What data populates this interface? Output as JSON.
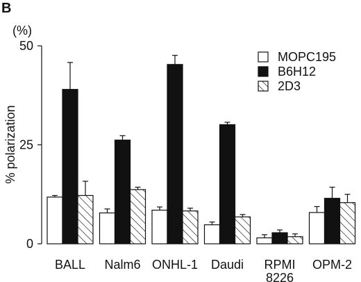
{
  "panel_label": "B",
  "chart_data": {
    "type": "bar",
    "unit_label": "(%)",
    "ylabel": "% polarization",
    "xlabel": "",
    "ylim": [
      0,
      50
    ],
    "yticks": [
      0,
      25,
      50
    ],
    "categories": [
      {
        "lines": [
          "BALL"
        ]
      },
      {
        "lines": [
          "Nalm6"
        ]
      },
      {
        "lines": [
          "ONHL-1"
        ]
      },
      {
        "lines": [
          "Daudi"
        ]
      },
      {
        "lines": [
          "RPMI",
          "8226"
        ]
      },
      {
        "lines": [
          "OPM-2"
        ]
      }
    ],
    "series": [
      {
        "name": "MOPC195",
        "pattern": "white",
        "values": [
          11.8,
          7.8,
          8.5,
          4.8,
          1.5,
          7.9
        ],
        "errors": [
          0.4,
          1.0,
          0.8,
          0.7,
          0.8,
          1.5
        ]
      },
      {
        "name": "B6H12",
        "pattern": "black",
        "values": [
          39.0,
          26.2,
          45.3,
          30.1,
          2.8,
          11.5
        ],
        "errors": [
          6.8,
          1.1,
          2.3,
          0.6,
          0.7,
          2.8
        ]
      },
      {
        "name": "2D3",
        "pattern": "hatched",
        "values": [
          12.2,
          13.7,
          8.3,
          6.8,
          1.8,
          10.4
        ],
        "errors": [
          3.6,
          0.6,
          0.7,
          0.6,
          0.7,
          2.1
        ]
      }
    ],
    "legend_position": "top-right",
    "grid": false
  }
}
